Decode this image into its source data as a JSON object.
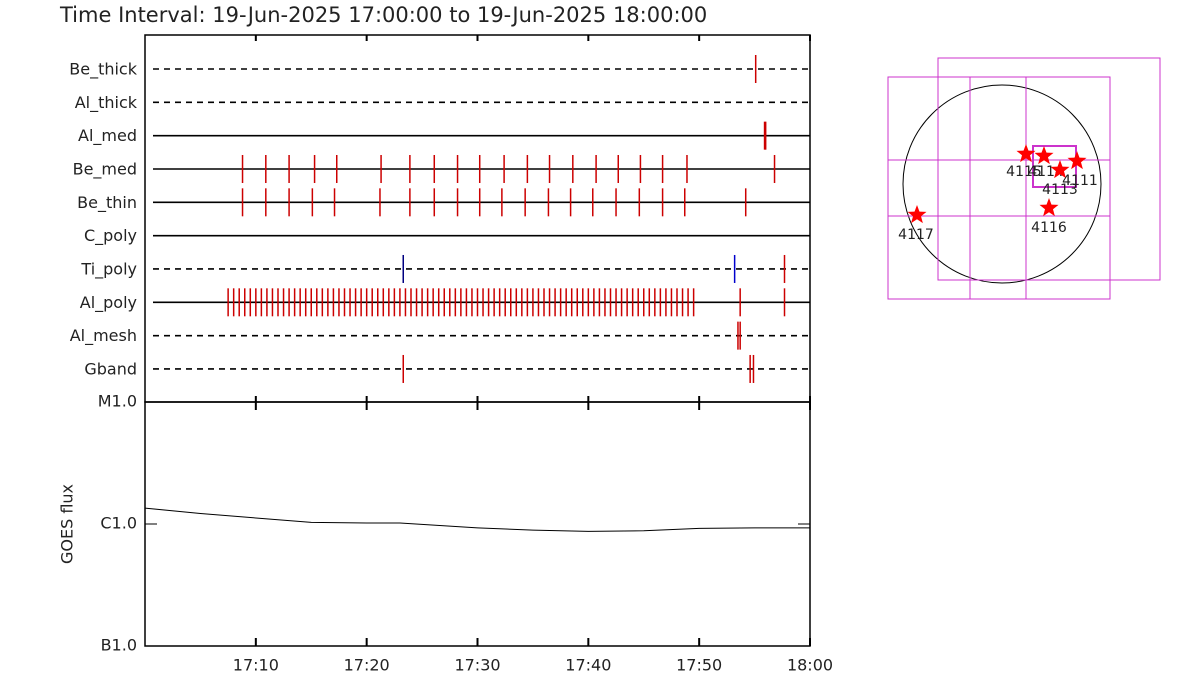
{
  "title": "Time Interval: 19-Jun-2025 17:00:00 to 19-Jun-2025 18:00:00",
  "chart_data": [
    {
      "type": "timeline",
      "xlim": [
        0,
        60
      ],
      "xticks": [
        {
          "value": 10,
          "label": "17:10"
        },
        {
          "value": 20,
          "label": "17:20"
        },
        {
          "value": 30,
          "label": "17:30"
        },
        {
          "value": 40,
          "label": "17:40"
        },
        {
          "value": 50,
          "label": "17:50"
        },
        {
          "value": 60,
          "label": "18:00"
        }
      ],
      "rows": [
        {
          "name": "Be_thick",
          "dashed": true,
          "color": "#cc0000",
          "times": [
            55.1
          ]
        },
        {
          "name": "Al_thick",
          "dashed": true,
          "color": "#cc0000",
          "times": []
        },
        {
          "name": "Al_med",
          "dashed": false,
          "color": "#cc0000",
          "times": [
            55.9,
            56.0
          ]
        },
        {
          "name": "Be_med",
          "dashed": false,
          "color": "#cc0000",
          "times": [
            8.8,
            10.9,
            13,
            15.3,
            17.3,
            21.3,
            23.9,
            26.1,
            28.2,
            30.2,
            32.4,
            34.5,
            36.5,
            38.6,
            40.7,
            42.7,
            44.7,
            46.7,
            48.9,
            56.8
          ]
        },
        {
          "name": "Be_thin",
          "dashed": false,
          "color": "#cc0000",
          "times": [
            8.8,
            10.9,
            13,
            15.1,
            17.1,
            21.2,
            23.9,
            26.1,
            28.2,
            30.2,
            32.2,
            34.3,
            36.4,
            38.4,
            40.4,
            42.5,
            44.6,
            46.7,
            48.7,
            54.2
          ]
        },
        {
          "name": "C_poly",
          "dashed": false,
          "color": "#cc0000",
          "times": []
        },
        {
          "name": "Ti_poly",
          "dashed": true,
          "color": "#cc0000",
          "colors": [
            "#000080",
            "#0000cc",
            "#cc0000"
          ],
          "times": [
            23.3,
            53.2,
            57.7
          ]
        },
        {
          "name": "Al_poly",
          "dashed": false,
          "color": "#cc0000",
          "times": [
            7.5,
            8,
            8.5,
            9,
            9.5,
            10,
            10.5,
            11,
            11.5,
            12,
            12.5,
            13,
            13.5,
            14,
            14.5,
            15,
            15.5,
            16,
            16.5,
            17,
            17.5,
            18,
            18.5,
            19,
            19.5,
            20,
            20.5,
            21,
            21.5,
            22,
            22.5,
            23,
            23.5,
            24,
            24.5,
            25,
            25.5,
            26,
            26.5,
            27,
            27.5,
            28,
            28.5,
            29,
            29.5,
            30,
            30.5,
            31,
            31.5,
            32,
            32.5,
            33,
            33.5,
            34,
            34.5,
            35,
            35.5,
            36,
            36.5,
            37,
            37.5,
            38,
            38.5,
            39,
            39.5,
            40,
            40.5,
            41,
            41.5,
            42,
            42.5,
            43,
            43.5,
            44,
            44.5,
            45,
            45.5,
            46,
            46.5,
            47,
            47.5,
            48,
            48.5,
            49,
            49.5,
            53.7,
            57.7
          ]
        },
        {
          "name": "Al_mesh",
          "dashed": true,
          "color": "#cc0000",
          "times": [
            53.5,
            53.7
          ]
        },
        {
          "name": "Gband",
          "dashed": true,
          "color": "#cc0000",
          "times": [
            23.3,
            54.6,
            54.9
          ]
        }
      ]
    },
    {
      "type": "line",
      "ylabel": "GOES flux",
      "log": true,
      "color": "#000000",
      "x": [
        0,
        5,
        10,
        15,
        20,
        23,
        30,
        35,
        40,
        45,
        50,
        55,
        60
      ],
      "values": [
        1.35e-06,
        1.22e-06,
        1.12e-06,
        1.03e-06,
        1.02e-06,
        1.02e-06,
        9.3e-07,
        8.9e-07,
        8.7e-07,
        8.8e-07,
        9.2e-07,
        9.3e-07,
        9.3e-07
      ],
      "xlim": [
        0,
        60
      ],
      "xticks": [
        {
          "value": 10,
          "label": "17:10"
        },
        {
          "value": 20,
          "label": "17:20"
        },
        {
          "value": 30,
          "label": "17:30"
        },
        {
          "value": 40,
          "label": "17:40"
        },
        {
          "value": 50,
          "label": "17:50"
        },
        {
          "value": 60,
          "label": "18:00"
        }
      ],
      "ylim": [
        1e-07,
        1e-05
      ],
      "yticks": [
        {
          "value": 1e-07,
          "label": "B1.0"
        },
        {
          "value": 1e-06,
          "label": "C1.0"
        },
        {
          "value": 1e-05,
          "label": "M1.0"
        }
      ]
    },
    {
      "type": "map",
      "regions": [
        "4115",
        "4114",
        "4113",
        "4111",
        "4116",
        "4117"
      ]
    }
  ]
}
